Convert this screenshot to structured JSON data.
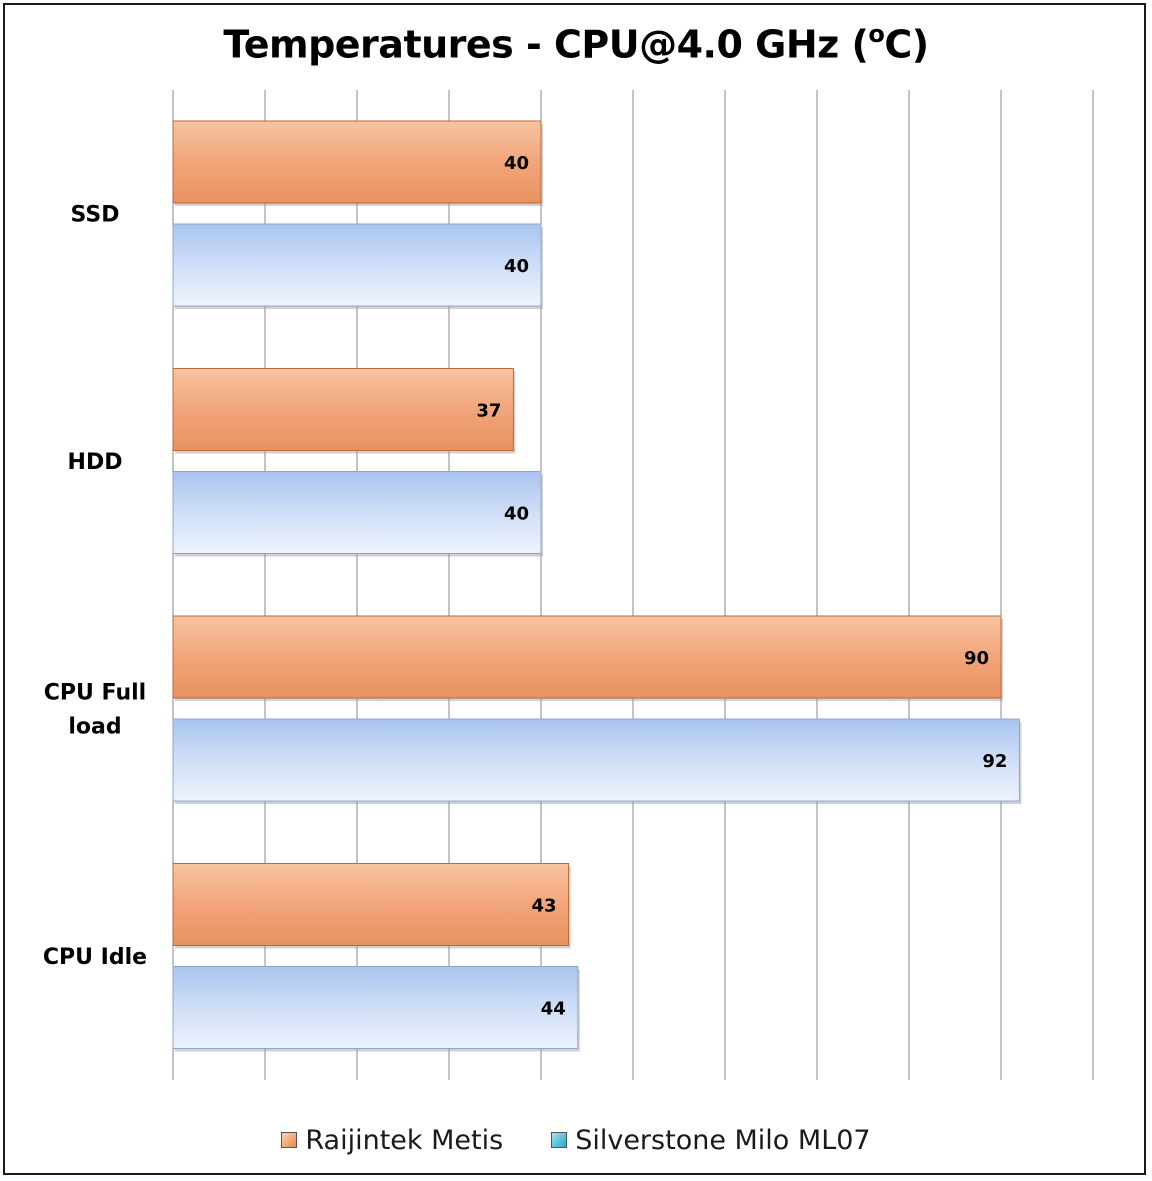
{
  "chart_data": {
    "type": "bar",
    "orientation": "horizontal",
    "title": "Temperatures - CPU@4.0 GHz (",
    "title_sup": "o",
    "title_tail": "C)",
    "categories": [
      "SSD",
      "HDD",
      "CPU Full load",
      "CPU Idle"
    ],
    "series": [
      {
        "name": "Raijintek Metis",
        "values": [
          40,
          37,
          90,
          43
        ],
        "color": "#f0a070"
      },
      {
        "name": "Silverstone Milo ML07",
        "values": [
          40,
          40,
          92,
          44
        ],
        "color": "#c6d8f5"
      }
    ],
    "xlim": [
      0,
      100
    ],
    "grid": true,
    "legend_position": "bottom"
  }
}
